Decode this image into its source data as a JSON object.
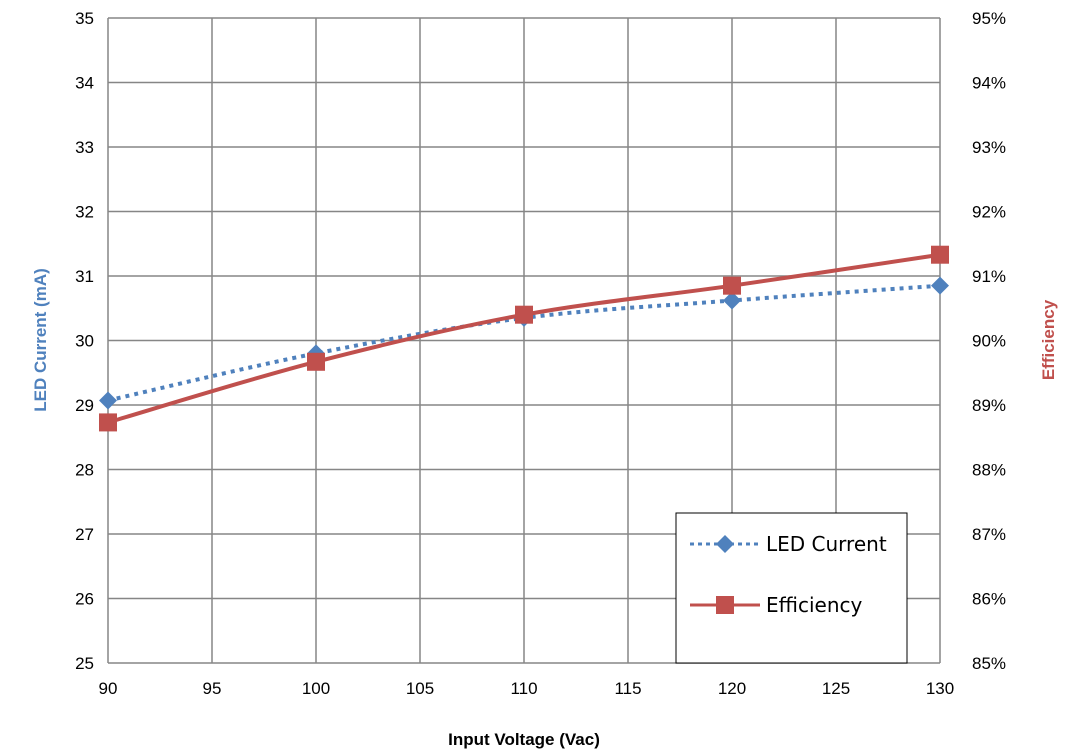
{
  "chart_data": {
    "type": "line",
    "xlabel": "Input Voltage (Vac)",
    "ylabel_left": "LED Current (mA)",
    "ylabel_right": "Efficiency",
    "x_ticks": [
      "90",
      "95",
      "100",
      "105",
      "110",
      "115",
      "120",
      "125",
      "130"
    ],
    "y_left_ticks": [
      "25",
      "26",
      "27",
      "28",
      "29",
      "30",
      "31",
      "32",
      "33",
      "34",
      "35"
    ],
    "y_right_ticks": [
      "85%",
      "86%",
      "87%",
      "88%",
      "89%",
      "90%",
      "91%",
      "92%",
      "93%",
      "94%",
      "95%"
    ],
    "xlim": [
      90,
      130
    ],
    "ylim_left": [
      25,
      35
    ],
    "ylim_right": [
      85,
      95
    ],
    "grid": true,
    "legend_position": "bottom-right",
    "series": [
      {
        "name": "LED Current",
        "axis": "left",
        "x": [
          90,
          100,
          110,
          120,
          130
        ],
        "y": [
          29.07,
          29.8,
          30.35,
          30.62,
          30.85
        ],
        "marker": "diamond",
        "line_style": "dotted",
        "color": "#4F81BD"
      },
      {
        "name": "Efficiency",
        "axis": "right",
        "x": [
          90,
          100,
          110,
          120,
          130
        ],
        "y": [
          88.73,
          89.67,
          90.4,
          90.85,
          91.33
        ],
        "marker": "square",
        "line_style": "solid",
        "color": "#C0504D"
      }
    ]
  }
}
